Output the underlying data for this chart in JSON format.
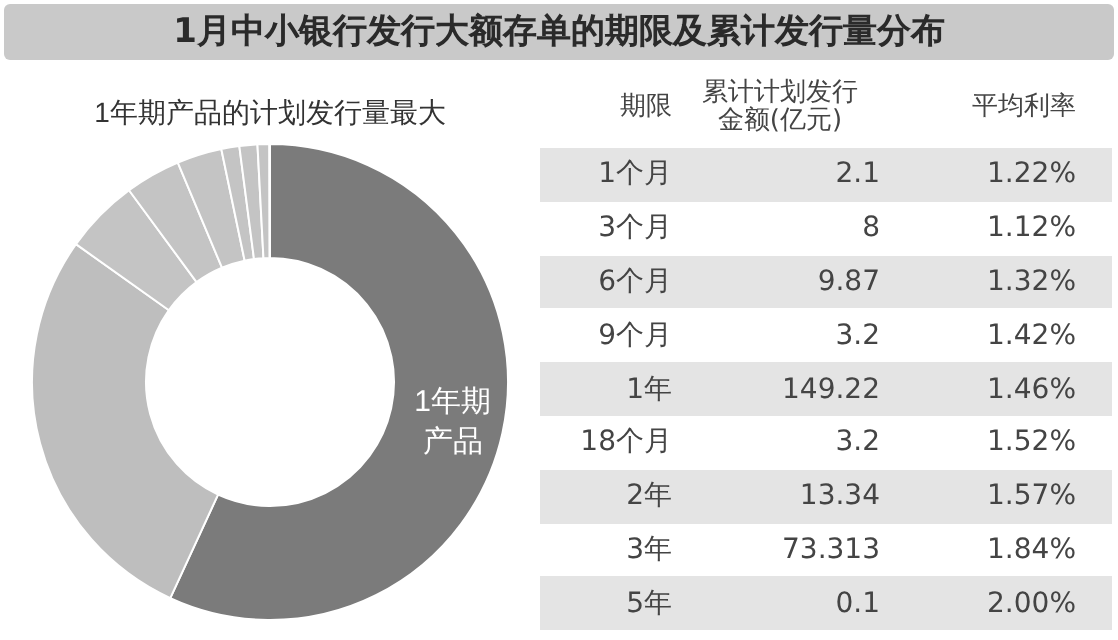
{
  "chart_data": [
    {
      "type": "donut",
      "title": "1月中小银行发行大额存单的期限及累计发行量分布",
      "subtitle": "1年期产品的计划发行量最大",
      "categories": [
        "1年期产品",
        null,
        null,
        null,
        null,
        null,
        null,
        null,
        null
      ],
      "values": [
        56.88,
        27.95,
        5.08,
        3.76,
        3.05,
        1.22,
        1.22,
        0.8,
        0.04
      ],
      "colors": [
        "#7b7b7b",
        "#bebebe",
        "#c4c4c4",
        "#c4c4c4",
        "#c4c4c4",
        "#c4c4c4",
        "#c4c4c4",
        "#c4c4c4",
        "#c4c4c4"
      ]
    },
    {
      "type": "other",
      "xlabel": "期限",
      "data_labels": true,
      "categories": [
        "1个月",
        "3个月",
        "6个月",
        "9个月",
        "1年",
        "18个月",
        "2年",
        "3年",
        "5年"
      ],
      "series": [
        {
          "name": "累计计划发行金额(亿元)",
          "values": [
            2.1,
            8,
            9.87,
            3.2,
            149.22,
            3.2,
            13.34,
            73.313,
            0.1
          ]
        },
        {
          "name": "平均利率",
          "values": [
            1.22,
            1.12,
            1.32,
            1.42,
            1.46,
            1.52,
            1.57,
            1.84,
            2.0
          ],
          "value_labels": [
            "1.22%",
            "1.12%",
            "1.32%",
            "1.42%",
            "1.46%",
            "1.52%",
            "1.57%",
            "1.84%",
            "2.00%"
          ]
        }
      ]
    }
  ]
}
